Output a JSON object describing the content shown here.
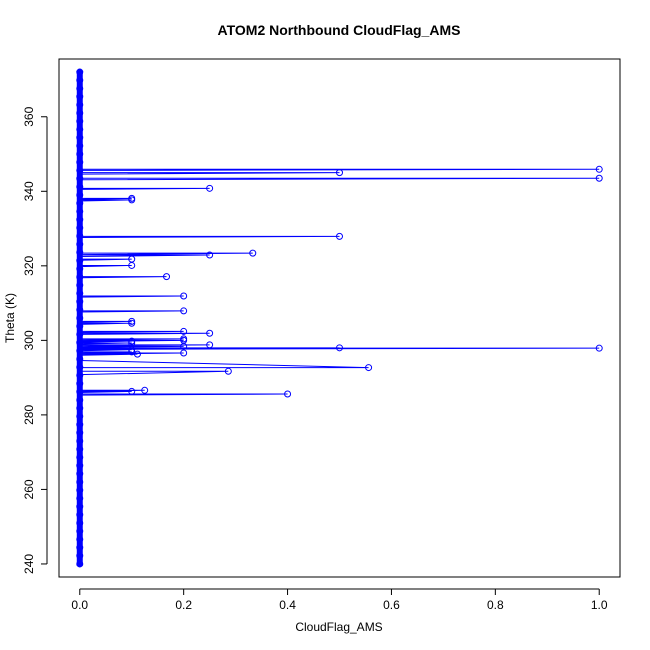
{
  "chart_data": {
    "type": "line",
    "title": "ATOM2 Northbound CloudFlag_AMS",
    "xlabel": "CloudFlag_AMS",
    "ylabel": "Theta (K)",
    "xlim": [
      -0.04,
      1.04
    ],
    "ylim": [
      236.5,
      375.5
    ],
    "x_ticks": [
      0.0,
      0.2,
      0.4,
      0.6,
      0.8,
      1.0
    ],
    "x_tick_labels": [
      "0.0",
      "0.2",
      "0.4",
      "0.6",
      "0.8",
      "1.0"
    ],
    "y_ticks": [
      240,
      260,
      280,
      300,
      320,
      340,
      360
    ],
    "y_tick_labels": [
      "240",
      "260",
      "280",
      "300",
      "320",
      "340",
      "360"
    ],
    "colors": {
      "series": "#0000ff",
      "axis": "#000000"
    },
    "grid": false,
    "legend": "none",
    "baseline": {
      "x": 0.0,
      "y_min": 240,
      "y_max": 372
    },
    "excursions": [
      {
        "y": 345.9,
        "x": 1.0,
        "y_return": 345.6
      },
      {
        "y": 345.0,
        "x": 0.5,
        "y_return": 344.6
      },
      {
        "y": 343.5,
        "x": 1.0,
        "y_return": 343.1
      },
      {
        "y": 340.8,
        "x": 0.25,
        "y_return": 340.5
      },
      {
        "y": 338.1,
        "x": 0.1,
        "y_return": 337.8
      },
      {
        "y": 337.7,
        "x": 0.1,
        "y_return": 337.4
      },
      {
        "y": 327.9,
        "x": 0.5,
        "y_return": 327.6
      },
      {
        "y": 323.4,
        "x": 0.333,
        "y_return": 323.0
      },
      {
        "y": 322.9,
        "x": 0.25,
        "y_return": 322.5
      },
      {
        "y": 321.8,
        "x": 0.1,
        "y_return": 321.5
      },
      {
        "y": 320.1,
        "x": 0.1,
        "y_return": 319.8
      },
      {
        "y": 317.1,
        "x": 0.167,
        "y_return": 316.8
      },
      {
        "y": 311.9,
        "x": 0.2,
        "y_return": 311.6
      },
      {
        "y": 307.9,
        "x": 0.2,
        "y_return": 307.6
      },
      {
        "y": 305.1,
        "x": 0.1,
        "y_return": 304.8
      },
      {
        "y": 304.6,
        "x": 0.1,
        "y_return": 304.3
      },
      {
        "y": 302.4,
        "x": 0.2,
        "y_return": 302.1
      },
      {
        "y": 301.9,
        "x": 0.25,
        "y_return": 301.6
      },
      {
        "y": 300.4,
        "x": 0.2,
        "y_return": 300.1
      },
      {
        "y": 300.0,
        "x": 0.2,
        "y_return": 299.7
      },
      {
        "y": 299.8,
        "x": 0.1,
        "y_return": 299.5
      },
      {
        "y": 299.3,
        "x": 0.1,
        "y_return": 299.0
      },
      {
        "y": 298.8,
        "x": 0.25,
        "y_return": 298.5
      },
      {
        "y": 298.4,
        "x": 0.2,
        "y_return": 298.1
      },
      {
        "y": 298.0,
        "x": 0.5,
        "y_return": 297.7
      },
      {
        "y": 297.9,
        "x": 1.0,
        "y_return": 297.6
      },
      {
        "y": 297.5,
        "x": 0.1,
        "y_return": 297.2
      },
      {
        "y": 296.9,
        "x": 0.1,
        "y_return": 296.6
      },
      {
        "y": 296.6,
        "x": 0.2,
        "y_return": 296.3
      },
      {
        "y": 296.3,
        "x": 0.111,
        "y_return": 296.0
      },
      {
        "y": 292.7,
        "x": 0.556,
        "y_return": 294.6
      },
      {
        "y": 291.7,
        "x": 0.286,
        "y_return": 290.8
      },
      {
        "y": 286.6,
        "x": 0.125,
        "y_return": 286.3
      },
      {
        "y": 286.3,
        "x": 0.1,
        "y_return": 286.0
      },
      {
        "y": 285.6,
        "x": 0.4,
        "y_return": 285.3
      }
    ]
  }
}
